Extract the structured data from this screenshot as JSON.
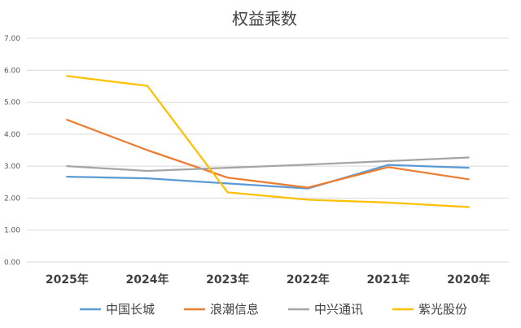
{
  "chart_data": {
    "type": "line",
    "title": "权益乘数",
    "categories": [
      "2025年",
      "2024年",
      "2023年",
      "2022年",
      "2021年",
      "2020年"
    ],
    "ylim": [
      0,
      7
    ],
    "yticks": [
      "0.00",
      "1.00",
      "2.00",
      "3.00",
      "4.00",
      "5.00",
      "6.00",
      "7.00"
    ],
    "grid": true,
    "legend_position": "bottom",
    "series": [
      {
        "name": "中国长城",
        "color": "#5B9BD5",
        "values": [
          2.67,
          2.62,
          2.46,
          2.3,
          3.04,
          2.95
        ]
      },
      {
        "name": "浪潮信息",
        "color": "#ED7D31",
        "values": [
          4.45,
          3.5,
          2.64,
          2.33,
          2.97,
          2.59
        ]
      },
      {
        "name": "中兴通讯",
        "color": "#A5A5A5",
        "values": [
          3.0,
          2.85,
          2.95,
          3.05,
          3.16,
          3.27
        ]
      },
      {
        "name": "紫光股份",
        "color": "#FFC000",
        "values": [
          5.82,
          5.51,
          2.18,
          1.95,
          1.86,
          1.72
        ]
      }
    ]
  }
}
